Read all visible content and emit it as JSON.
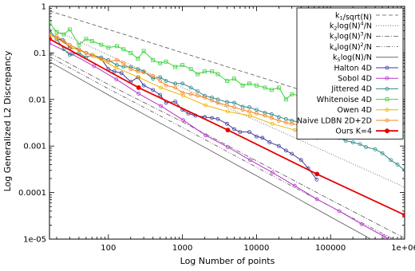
{
  "chart_data": {
    "type": "line",
    "xlabel": "Log Number of points",
    "ylabel": "Log Generalized L2 Discrepancy",
    "xscale": "log",
    "yscale": "log",
    "xlim": [
      16,
      1000000
    ],
    "ylim": [
      1e-05,
      1
    ],
    "x_ticks": [
      {
        "value": 100,
        "label": "100"
      },
      {
        "value": 1000,
        "label": "1000"
      },
      {
        "value": 10000,
        "label": "10000"
      },
      {
        "value": 100000,
        "label": "100000"
      },
      {
        "value": 1000000,
        "label": "1e+06"
      }
    ],
    "y_ticks": [
      {
        "value": 1,
        "label": "1"
      },
      {
        "value": 0.1,
        "label": "0.1"
      },
      {
        "value": 0.01,
        "label": "0.01"
      },
      {
        "value": 0.001,
        "label": "0.001"
      },
      {
        "value": 0.0001,
        "label": "0.0001"
      },
      {
        "value": 1e-05,
        "label": "1e-05"
      }
    ],
    "grid": false,
    "legend_position": "top-right",
    "series": [
      {
        "name": "k1/sqrt(N)",
        "legend": {
          "k": "k",
          "sub": "1",
          "pre": "",
          "sup": "",
          "post": "/sqrt(N)"
        },
        "color": "#555555",
        "dash": "5,3",
        "width": 0.8,
        "marker": "none",
        "x": [
          16,
          1000000
        ],
        "y": [
          0.8,
          0.0032
        ]
      },
      {
        "name": "k2log(N)4/N",
        "legend": {
          "k": "k",
          "sub": "2",
          "pre": "log(N)",
          "sup": "4",
          "post": "/N"
        },
        "color": "#555555",
        "dash": "1,2",
        "width": 0.8,
        "marker": "none",
        "x": [
          16,
          100,
          1000,
          10000,
          100000,
          1000000
        ],
        "y": [
          0.35,
          0.09,
          0.018,
          0.0035,
          0.00068,
          0.00013
        ]
      },
      {
        "name": "k3log(N)3/N",
        "legend": {
          "k": "k",
          "sub": "3",
          "pre": "log(N)",
          "sup": "3",
          "post": "/N"
        },
        "color": "#555555",
        "dash": "6,2,1,2",
        "width": 0.8,
        "marker": "none",
        "x": [
          16,
          100,
          1000,
          10000,
          100000,
          1000000
        ],
        "y": [
          0.1,
          0.021,
          0.0033,
          0.00048,
          7e-05,
          1.05e-05
        ]
      },
      {
        "name": "k4log(N)2/N",
        "legend": {
          "k": "k",
          "sub": "4",
          "pre": "log(N)",
          "sup": "2",
          "post": "/N"
        },
        "color": "#555555",
        "dash": "5,2,1,2,1,2",
        "width": 0.8,
        "marker": "none",
        "x": [
          16,
          100,
          1000,
          10000,
          100000,
          1000000
        ],
        "y": [
          0.082,
          0.017,
          0.0025,
          0.00035,
          5e-05,
          7.5e-06
        ]
      },
      {
        "name": "k5log(N)/N",
        "legend": {
          "k": "k",
          "sub": "5",
          "pre": "log(N)/N",
          "sup": "",
          "post": ""
        },
        "color": "#555555",
        "dash": "",
        "width": 0.8,
        "marker": "none",
        "x": [
          16,
          100,
          1000,
          10000,
          100000,
          1000000
        ],
        "y": [
          0.065,
          0.0125,
          0.0017,
          0.00023,
          3e-05,
          4e-06
        ]
      },
      {
        "name": "Halton 4D",
        "legend": {
          "k": "",
          "sub": "",
          "pre": "Halton 4D",
          "sup": "",
          "post": ""
        },
        "color": "#3c3c9c",
        "dash": "",
        "width": 1,
        "marker": "circle",
        "x": [
          16,
          20,
          24,
          30,
          40,
          50,
          60,
          80,
          100,
          120,
          150,
          200,
          250,
          300,
          400,
          500,
          600,
          800,
          1000,
          1200,
          1500,
          2000,
          2500,
          3000,
          4000,
          5000,
          6000,
          8000,
          10000,
          12000,
          15000,
          20000,
          25000,
          30000,
          40000,
          50000,
          65000
        ],
        "y": [
          0.3,
          0.2,
          0.19,
          0.13,
          0.12,
          0.1,
          0.09,
          0.075,
          0.045,
          0.04,
          0.037,
          0.024,
          0.03,
          0.02,
          0.016,
          0.0125,
          0.0085,
          0.009,
          0.006,
          0.005,
          0.0045,
          0.0042,
          0.004,
          0.0038,
          0.003,
          0.0023,
          0.002,
          0.002,
          0.0016,
          0.0015,
          0.0012,
          0.001,
          0.0008,
          0.00068,
          0.0005,
          0.00033,
          0.00019
        ]
      },
      {
        "name": "Sobol 4D",
        "legend": {
          "k": "",
          "sub": "",
          "pre": "Sobol 4D",
          "sup": "",
          "post": ""
        },
        "color": "#b832c8",
        "dash": "",
        "width": 1,
        "marker": "circle",
        "x": [
          16,
          32,
          64,
          128,
          256,
          512,
          1024,
          2048,
          4096,
          8192,
          16384,
          32768,
          65536,
          131072,
          262144,
          524288,
          1000000
        ],
        "y": [
          0.16,
          0.095,
          0.052,
          0.027,
          0.0133,
          0.0072,
          0.0036,
          0.0017,
          0.00095,
          0.0005,
          0.00027,
          0.00014,
          7.2e-05,
          4e-05,
          2.1e-05,
          1.15e-05,
          6.5e-06
        ]
      },
      {
        "name": "Jittered 4D",
        "legend": {
          "k": "",
          "sub": "",
          "pre": "Jittered 4D",
          "sup": "",
          "post": ""
        },
        "color": "#2e8a8a",
        "dash": "",
        "width": 1,
        "marker": "circle",
        "x": [
          16,
          20,
          25,
          30,
          40,
          50,
          60,
          80,
          100,
          130,
          160,
          200,
          250,
          300,
          400,
          500,
          600,
          800,
          1000,
          1300,
          1600,
          2000,
          2500,
          3000,
          4000,
          5000,
          6500,
          8000,
          10000,
          13000,
          16000,
          20000,
          25000,
          30000,
          40000,
          50000,
          65000,
          80000,
          100000,
          130000,
          160000,
          200000,
          250000,
          300000,
          400000,
          500000,
          650000,
          800000,
          1000000
        ],
        "y": [
          0.3,
          0.2,
          0.12,
          0.09,
          0.1,
          0.08,
          0.09,
          0.08,
          0.07,
          0.055,
          0.05,
          0.05,
          0.045,
          0.04,
          0.028,
          0.03,
          0.025,
          0.022,
          0.022,
          0.018,
          0.015,
          0.012,
          0.011,
          0.01,
          0.0088,
          0.0085,
          0.007,
          0.0068,
          0.006,
          0.0052,
          0.0048,
          0.0042,
          0.0038,
          0.0035,
          0.0032,
          0.003,
          0.0025,
          0.0022,
          0.0018,
          0.0015,
          0.0013,
          0.0012,
          0.0011,
          0.00095,
          0.00085,
          0.0007,
          0.0005,
          0.0004,
          0.0003
        ]
      },
      {
        "name": "Whitenoise 4D",
        "legend": {
          "k": "",
          "sub": "",
          "pre": "Whitenoise 4D",
          "sup": "",
          "post": ""
        },
        "color": "#3cd23c",
        "dash": "",
        "width": 1,
        "marker": "square",
        "x": [
          16,
          20,
          25,
          30,
          40,
          50,
          60,
          80,
          100,
          130,
          160,
          200,
          250,
          300,
          400,
          500,
          600,
          800,
          1000,
          1300,
          1600,
          2000,
          2500,
          3000,
          4000,
          5000,
          6500,
          8000,
          10000,
          13000,
          16000,
          20000,
          25000,
          30000,
          40000,
          50000,
          65000,
          80000,
          100000,
          130000,
          160000,
          200000,
          250000,
          300000,
          400000,
          500000,
          650000,
          800000,
          1000000
        ],
        "y": [
          0.45,
          0.28,
          0.25,
          0.32,
          0.15,
          0.2,
          0.18,
          0.15,
          0.13,
          0.14,
          0.12,
          0.1,
          0.075,
          0.11,
          0.07,
          0.06,
          0.065,
          0.05,
          0.055,
          0.045,
          0.035,
          0.04,
          0.04,
          0.035,
          0.025,
          0.028,
          0.02,
          0.022,
          0.02,
          0.018,
          0.016,
          0.018,
          0.01,
          0.013,
          0.012,
          0.0095,
          0.0085,
          0.008,
          0.0075,
          0.0065,
          0.006,
          0.005,
          0.0045,
          0.0038,
          0.0033,
          0.0028,
          0.0024,
          0.0019,
          0.0016
        ]
      },
      {
        "name": "Owen 4D",
        "legend": {
          "k": "",
          "sub": "",
          "pre": "Owen 4D",
          "sup": "",
          "post": ""
        },
        "color": "#f0b400",
        "dash": "",
        "width": 1,
        "marker": "circle",
        "x": [
          16,
          32,
          64,
          128,
          256,
          512,
          1024,
          2048,
          4096,
          8192,
          16384,
          32768,
          65536
        ],
        "y": [
          0.25,
          0.13,
          0.085,
          0.048,
          0.03,
          0.018,
          0.012,
          0.0075,
          0.0055,
          0.0045,
          0.003,
          0.0022,
          0.0015
        ]
      },
      {
        "name": "Naive LDBN 2D+2D",
        "legend": {
          "k": "",
          "sub": "",
          "pre": "Naive LDBN 2D+2D",
          "sup": "",
          "post": ""
        },
        "color": "#f5841e",
        "dash": "",
        "width": 1,
        "marker": "circle",
        "x": [
          16,
          20,
          25,
          30,
          40,
          50,
          60,
          80,
          100,
          130,
          160,
          200,
          250,
          300,
          400,
          500,
          600,
          800,
          1000,
          1300,
          1600,
          2000,
          2500,
          3000,
          4000,
          5000,
          6500,
          8000,
          10000,
          13000,
          16000,
          20000,
          25000,
          30000,
          40000,
          50000,
          65000
        ],
        "y": [
          0.24,
          0.23,
          0.18,
          0.15,
          0.12,
          0.1,
          0.09,
          0.075,
          0.065,
          0.07,
          0.06,
          0.045,
          0.04,
          0.038,
          0.032,
          0.025,
          0.02,
          0.018,
          0.014,
          0.013,
          0.012,
          0.011,
          0.0095,
          0.0085,
          0.0075,
          0.0068,
          0.006,
          0.0055,
          0.005,
          0.0045,
          0.004,
          0.0035,
          0.0032,
          0.003,
          0.0028,
          0.0025,
          0.0023
        ]
      },
      {
        "name": "Ours K=4",
        "legend": {
          "k": "",
          "sub": "",
          "pre": "Ours K=4",
          "sup": "",
          "post": ""
        },
        "color": "#e60000",
        "dash": "",
        "width": 1.8,
        "marker": "disc",
        "x": [
          16,
          256,
          4096,
          65536,
          1000000
        ],
        "y": [
          0.2,
          0.018,
          0.0022,
          0.00025,
          3.3e-05
        ]
      }
    ]
  }
}
